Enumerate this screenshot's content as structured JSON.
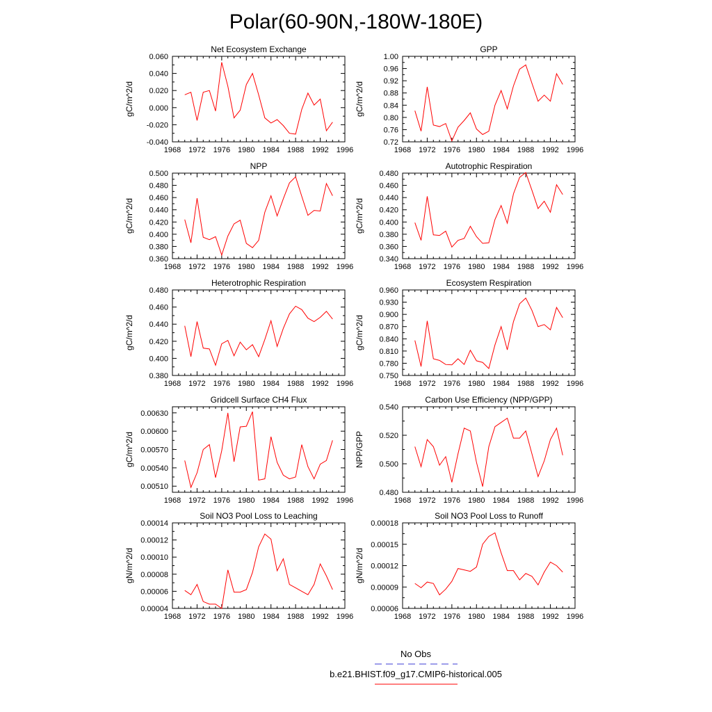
{
  "title": "Polar(60-90N,-180W-180E)",
  "legend": {
    "obs_label": "No Obs",
    "model_label": "b.e21.BHIST.f09_g17.CMIP6-historical.005",
    "obs_color": "#3b3bd6",
    "model_color": "#ff0000"
  },
  "line_color": "#ff0000",
  "years": [
    1970,
    1971,
    1972,
    1973,
    1974,
    1975,
    1976,
    1977,
    1978,
    1979,
    1980,
    1981,
    1982,
    1983,
    1984,
    1985,
    1986,
    1987,
    1988,
    1989,
    1990,
    1991,
    1992,
    1993,
    1994
  ],
  "chart_data": [
    {
      "type": "line",
      "title": "Net Ecosystem Exchange",
      "ylabel": "gC/m^2/d",
      "xlim": [
        1968,
        1996
      ],
      "xticks": [
        1968,
        1972,
        1976,
        1980,
        1984,
        1988,
        1992,
        1996
      ],
      "xtick_labels": [
        "1968",
        "1972",
        "1976",
        "1980",
        "1984",
        "1988",
        "1992",
        "1996"
      ],
      "ylim": [
        -0.04,
        0.06
      ],
      "yticks": [
        -0.04,
        -0.02,
        0.0,
        0.02,
        0.04,
        0.06
      ],
      "ytick_labels": [
        "-0.040",
        "-0.020",
        "0.000",
        "0.020",
        "0.040",
        "0.060"
      ],
      "values": [
        0.015,
        0.018,
        -0.015,
        0.018,
        0.02,
        -0.004,
        0.053,
        0.025,
        -0.012,
        -0.003,
        0.027,
        0.04,
        0.015,
        -0.012,
        -0.018,
        -0.014,
        -0.021,
        -0.03,
        -0.031,
        -0.002,
        0.017,
        0.003,
        0.01,
        -0.027,
        -0.017
      ]
    },
    {
      "type": "line",
      "title": "GPP",
      "ylabel": "gC/m^2/d",
      "xlim": [
        1968,
        1996
      ],
      "xticks": [
        1968,
        1972,
        1976,
        1980,
        1984,
        1988,
        1992,
        1996
      ],
      "xtick_labels": [
        "1968",
        "1972",
        "1976",
        "1980",
        "1984",
        "1988",
        "1992",
        "1996"
      ],
      "ylim": [
        0.72,
        1.0
      ],
      "yticks": [
        0.72,
        0.76,
        0.8,
        0.84,
        0.88,
        0.92,
        0.96,
        1.0
      ],
      "ytick_labels": [
        "0.72",
        "0.76",
        "0.80",
        "0.84",
        "0.88",
        "0.92",
        "0.96",
        "1.00"
      ],
      "values": [
        0.822,
        0.755,
        0.9,
        0.775,
        0.77,
        0.78,
        0.723,
        0.768,
        0.79,
        0.815,
        0.762,
        0.744,
        0.755,
        0.84,
        0.888,
        0.828,
        0.903,
        0.958,
        0.972,
        0.912,
        0.853,
        0.873,
        0.853,
        0.943,
        0.908
      ]
    },
    {
      "type": "line",
      "title": "NPP",
      "ylabel": "gC/m^2/d",
      "xlim": [
        1968,
        1996
      ],
      "xticks": [
        1968,
        1972,
        1976,
        1980,
        1984,
        1988,
        1992,
        1996
      ],
      "xtick_labels": [
        "1968",
        "1972",
        "1976",
        "1980",
        "1984",
        "1988",
        "1992",
        "1996"
      ],
      "ylim": [
        0.36,
        0.5
      ],
      "yticks": [
        0.36,
        0.38,
        0.4,
        0.42,
        0.44,
        0.46,
        0.48,
        0.5
      ],
      "ytick_labels": [
        "0.360",
        "0.380",
        "0.400",
        "0.420",
        "0.440",
        "0.460",
        "0.480",
        "0.500"
      ],
      "values": [
        0.424,
        0.386,
        0.459,
        0.395,
        0.391,
        0.396,
        0.366,
        0.397,
        0.417,
        0.423,
        0.385,
        0.378,
        0.39,
        0.436,
        0.463,
        0.43,
        0.458,
        0.484,
        0.494,
        0.462,
        0.431,
        0.439,
        0.438,
        0.483,
        0.463
      ]
    },
    {
      "type": "line",
      "title": "Autotrophic Respiration",
      "ylabel": "gC/m^2/d",
      "xlim": [
        1968,
        1996
      ],
      "xticks": [
        1968,
        1972,
        1976,
        1980,
        1984,
        1988,
        1992,
        1996
      ],
      "xtick_labels": [
        "1968",
        "1972",
        "1976",
        "1980",
        "1984",
        "1988",
        "1992",
        "1996"
      ],
      "ylim": [
        0.34,
        0.48
      ],
      "yticks": [
        0.34,
        0.36,
        0.38,
        0.4,
        0.42,
        0.44,
        0.46,
        0.48
      ],
      "ytick_labels": [
        "0.340",
        "0.360",
        "0.380",
        "0.400",
        "0.420",
        "0.440",
        "0.460",
        "0.480"
      ],
      "values": [
        0.399,
        0.37,
        0.442,
        0.379,
        0.378,
        0.385,
        0.359,
        0.37,
        0.373,
        0.393,
        0.376,
        0.365,
        0.366,
        0.404,
        0.427,
        0.398,
        0.446,
        0.473,
        0.481,
        0.452,
        0.422,
        0.434,
        0.416,
        0.461,
        0.445
      ]
    },
    {
      "type": "line",
      "title": "Heterotrophic Respiration",
      "ylabel": "gC/m^2/d",
      "xlim": [
        1968,
        1996
      ],
      "xticks": [
        1968,
        1972,
        1976,
        1980,
        1984,
        1988,
        1992,
        1996
      ],
      "xtick_labels": [
        "1968",
        "1972",
        "1976",
        "1980",
        "1984",
        "1988",
        "1992",
        "1996"
      ],
      "ylim": [
        0.38,
        0.48
      ],
      "yticks": [
        0.38,
        0.4,
        0.42,
        0.44,
        0.46,
        0.48
      ],
      "ytick_labels": [
        "0.380",
        "0.400",
        "0.420",
        "0.440",
        "0.460",
        "0.480"
      ],
      "values": [
        0.438,
        0.402,
        0.443,
        0.412,
        0.411,
        0.392,
        0.417,
        0.421,
        0.403,
        0.419,
        0.41,
        0.416,
        0.402,
        0.422,
        0.444,
        0.414,
        0.435,
        0.452,
        0.461,
        0.457,
        0.447,
        0.443,
        0.448,
        0.455,
        0.446
      ]
    },
    {
      "type": "line",
      "title": "Ecosystem Respiration",
      "ylabel": "gC/m^2/d",
      "xlim": [
        1968,
        1996
      ],
      "xticks": [
        1968,
        1972,
        1976,
        1980,
        1984,
        1988,
        1992,
        1996
      ],
      "xtick_labels": [
        "1968",
        "1972",
        "1976",
        "1980",
        "1984",
        "1988",
        "1992",
        "1996"
      ],
      "ylim": [
        0.75,
        0.96
      ],
      "yticks": [
        0.75,
        0.78,
        0.81,
        0.84,
        0.87,
        0.9,
        0.93,
        0.96
      ],
      "ytick_labels": [
        "0.750",
        "0.780",
        "0.810",
        "0.840",
        "0.870",
        "0.900",
        "0.930",
        "0.960"
      ],
      "values": [
        0.836,
        0.772,
        0.884,
        0.791,
        0.787,
        0.777,
        0.776,
        0.791,
        0.777,
        0.812,
        0.786,
        0.782,
        0.767,
        0.825,
        0.87,
        0.813,
        0.882,
        0.926,
        0.94,
        0.91,
        0.87,
        0.875,
        0.862,
        0.917,
        0.892
      ]
    },
    {
      "type": "line",
      "title": "Gridcell Surface CH4 Flux",
      "ylabel": "gC/m^2/d",
      "xlim": [
        1968,
        1996
      ],
      "xticks": [
        1968,
        1972,
        1976,
        1980,
        1984,
        1988,
        1992,
        1996
      ],
      "xtick_labels": [
        "1968",
        "1972",
        "1976",
        "1980",
        "1984",
        "1988",
        "1992",
        "1996"
      ],
      "ylim": [
        0.005,
        0.0064
      ],
      "yticks": [
        0.0051,
        0.0054,
        0.0057,
        0.006,
        0.0063
      ],
      "ytick_labels": [
        "0.00510",
        "0.00540",
        "0.00570",
        "0.00600",
        "0.00630"
      ],
      "values": [
        0.00552,
        0.00508,
        0.00532,
        0.0057,
        0.00578,
        0.00524,
        0.00568,
        0.0063,
        0.0055,
        0.00607,
        0.00608,
        0.00632,
        0.0052,
        0.00522,
        0.00591,
        0.00549,
        0.00528,
        0.00522,
        0.00525,
        0.00578,
        0.00542,
        0.00522,
        0.00546,
        0.00552,
        0.00585
      ]
    },
    {
      "type": "line",
      "title": "Carbon Use Efficiency (NPP/GPP)",
      "ylabel": "NPP/GPP",
      "xlim": [
        1968,
        1996
      ],
      "xticks": [
        1968,
        1972,
        1976,
        1980,
        1984,
        1988,
        1992,
        1996
      ],
      "xtick_labels": [
        "1968",
        "1972",
        "1976",
        "1980",
        "1984",
        "1988",
        "1992",
        "1996"
      ],
      "ylim": [
        0.48,
        0.54
      ],
      "yticks": [
        0.48,
        0.5,
        0.52,
        0.54
      ],
      "ytick_labels": [
        "0.480",
        "0.500",
        "0.520",
        "0.540"
      ],
      "values": [
        0.512,
        0.498,
        0.517,
        0.512,
        0.499,
        0.505,
        0.487,
        0.507,
        0.525,
        0.523,
        0.501,
        0.484,
        0.512,
        0.526,
        0.529,
        0.532,
        0.518,
        0.518,
        0.523,
        0.507,
        0.491,
        0.502,
        0.517,
        0.525,
        0.506
      ]
    },
    {
      "type": "line",
      "title": "Soil NO3 Pool Loss to Leaching",
      "ylabel": "gN/m^2/d",
      "xlim": [
        1968,
        1996
      ],
      "xticks": [
        1968,
        1972,
        1976,
        1980,
        1984,
        1988,
        1992,
        1996
      ],
      "xtick_labels": [
        "1968",
        "1972",
        "1976",
        "1980",
        "1984",
        "1988",
        "1992",
        "1996"
      ],
      "ylim": [
        4e-05,
        0.00014
      ],
      "yticks": [
        4e-05,
        6e-05,
        8e-05,
        0.0001,
        0.00012,
        0.00014
      ],
      "ytick_labels": [
        "0.00004",
        "0.00006",
        "0.00008",
        "0.00010",
        "0.00012",
        "0.00014"
      ],
      "values": [
        6.1e-05,
        5.6e-05,
        6.8e-05,
        4.8e-05,
        4.5e-05,
        4.5e-05,
        4e-05,
        8.5e-05,
        5.9e-05,
        5.9e-05,
        6.2e-05,
        8.2e-05,
        0.000112,
        0.000127,
        0.000121,
        8.4e-05,
        9.8e-05,
        6.8e-05,
        6.4e-05,
        6e-05,
        5.6e-05,
        6.8e-05,
        9.2e-05,
        7.8e-05,
        6.2e-05
      ]
    },
    {
      "type": "line",
      "title": "Soil NO3 Pool Loss to Runoff",
      "ylabel": "gN/m^2/d",
      "xlim": [
        1968,
        1996
      ],
      "xticks": [
        1968,
        1972,
        1976,
        1980,
        1984,
        1988,
        1992,
        1996
      ],
      "xtick_labels": [
        "1968",
        "1972",
        "1976",
        "1980",
        "1984",
        "1988",
        "1992",
        "1996"
      ],
      "ylim": [
        6e-05,
        0.00018
      ],
      "yticks": [
        6e-05,
        9e-05,
        0.00012,
        0.00015,
        0.00018
      ],
      "ytick_labels": [
        "0.00006",
        "0.00009",
        "0.00012",
        "0.00015",
        "0.00018"
      ],
      "values": [
        9.5e-05,
        8.9e-05,
        9.7e-05,
        9.5e-05,
        7.9e-05,
        8.7e-05,
        9.8e-05,
        0.000116,
        0.000114,
        0.000112,
        0.000118,
        0.00015,
        0.000161,
        0.000166,
        0.000138,
        0.000113,
        0.000113,
        0.0001,
        0.000109,
        0.000105,
        9.3e-05,
        0.000111,
        0.000125,
        0.00012,
        0.000111
      ]
    }
  ]
}
